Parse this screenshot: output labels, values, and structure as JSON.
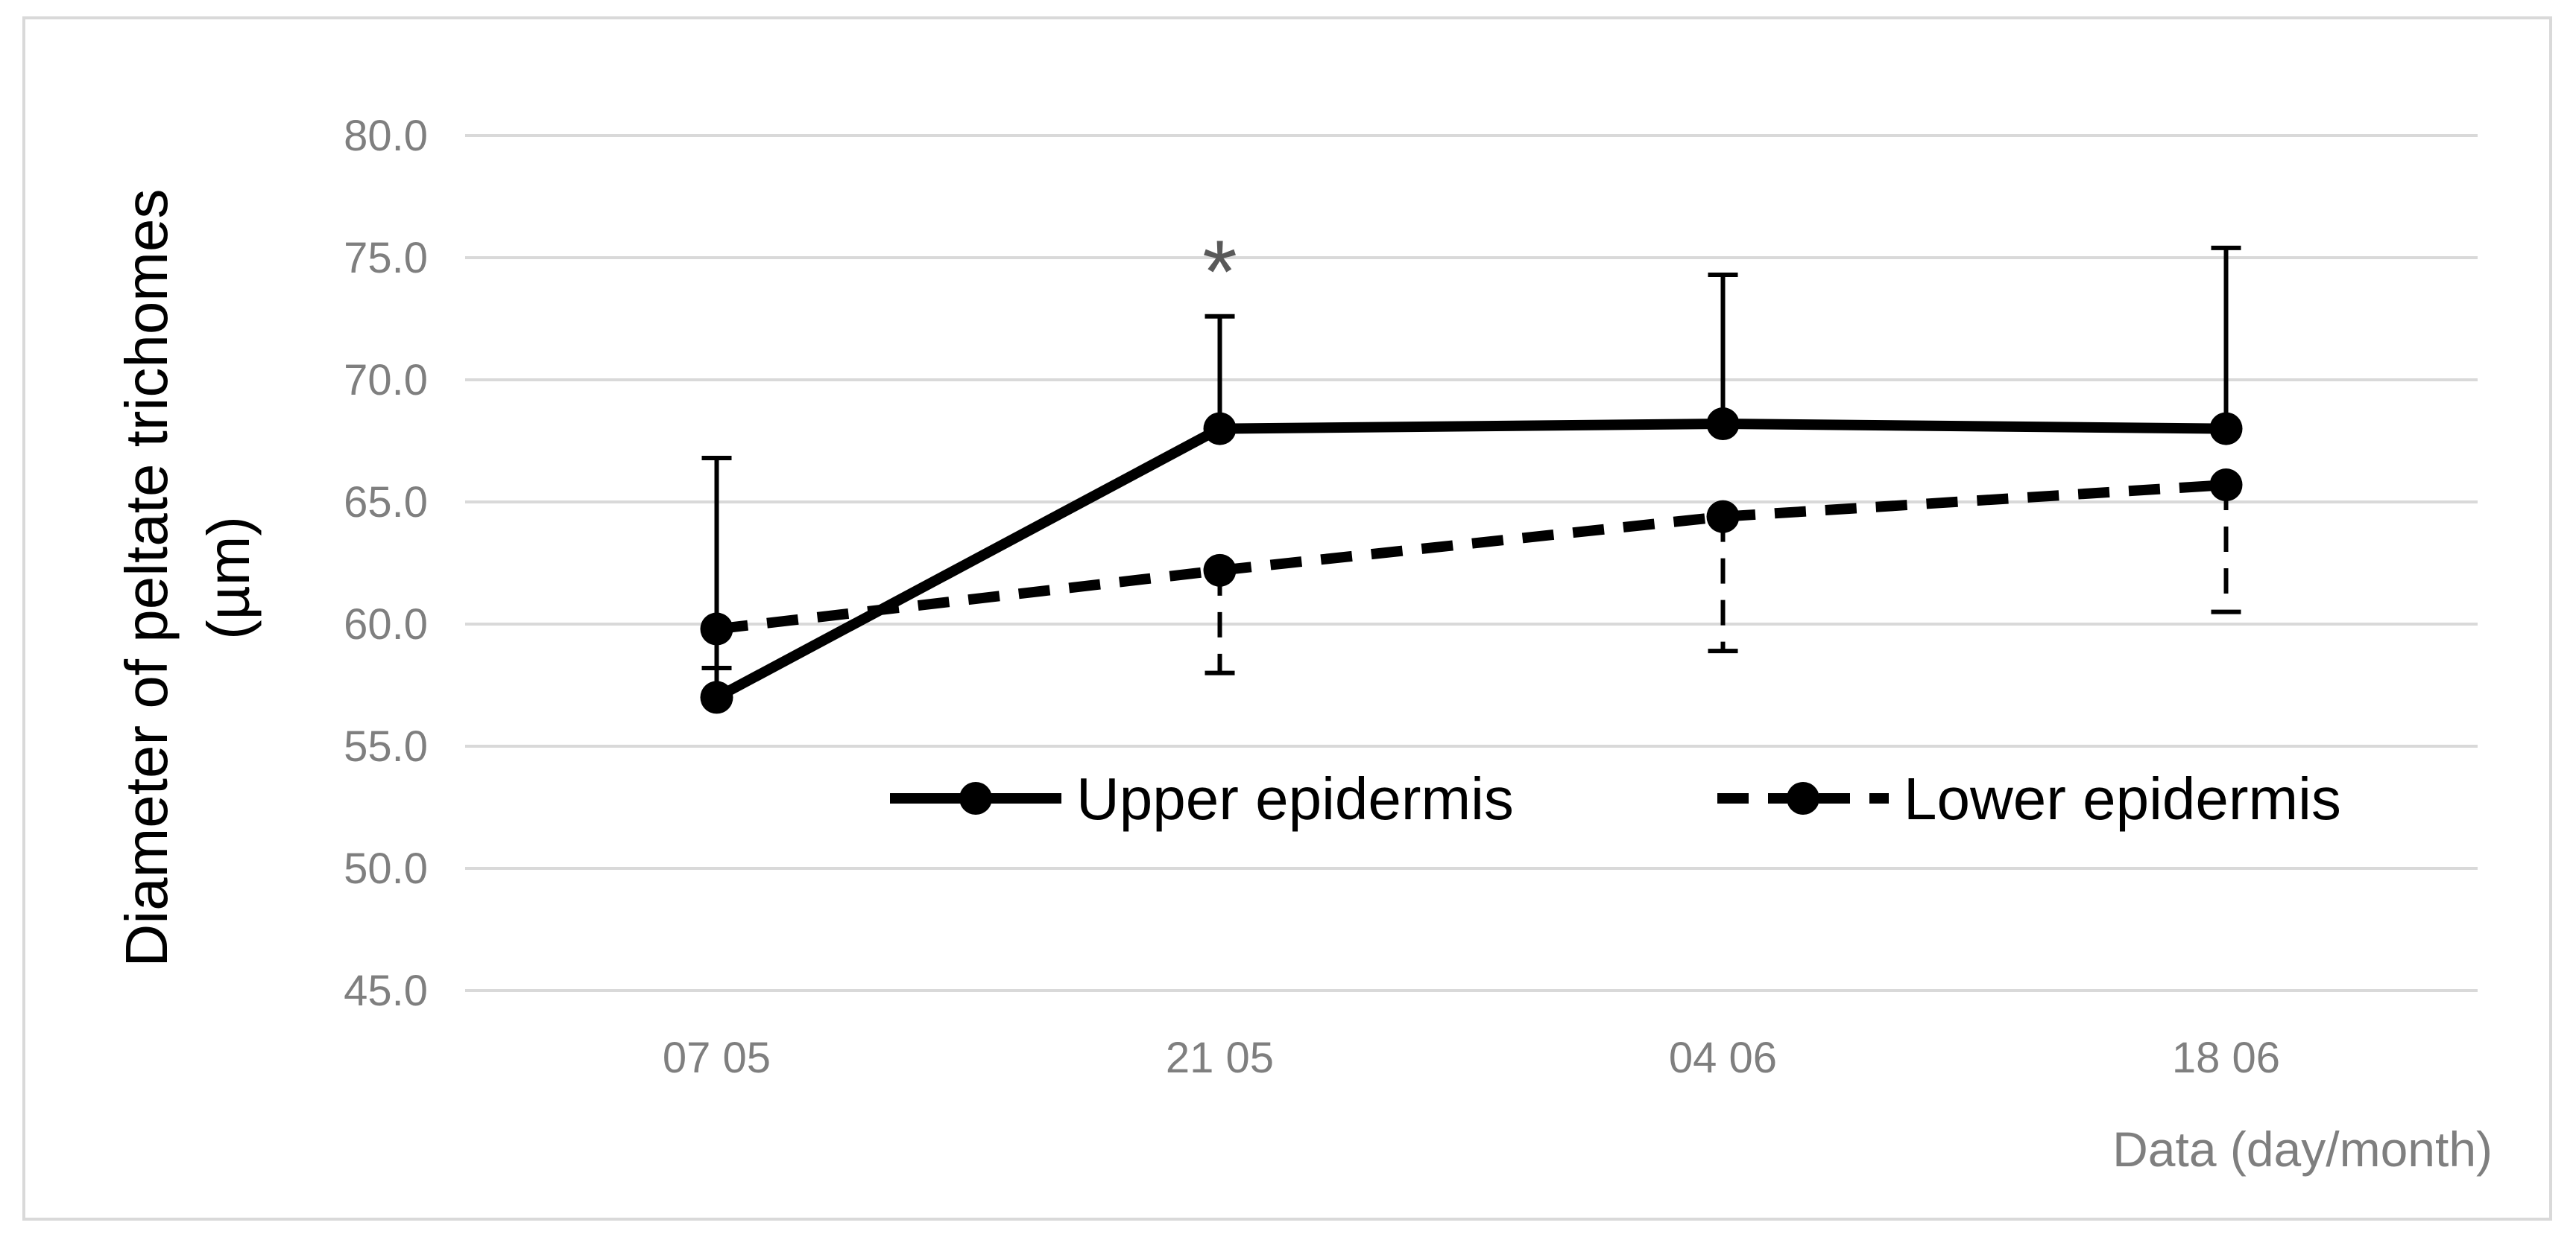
{
  "chart_data": {
    "type": "line",
    "title": "",
    "xlabel": "Data (day/month)",
    "ylabel_line1": "Diameter of peltate  trichomes",
    "ylabel_line2": "(µm)",
    "categories": [
      "07 05",
      "21 05",
      "04 06",
      "18 06"
    ],
    "ylim": [
      45.0,
      80.0
    ],
    "yticks": [
      "80.0",
      "75.0",
      "70.0",
      "65.0",
      "60.0",
      "55.0",
      "50.0",
      "45.0"
    ],
    "grid": true,
    "legend_position": "inside-bottom-right",
    "series": [
      {
        "name": "Upper epidermis",
        "style": "solid",
        "color": "#000000",
        "values": [
          57.0,
          68.0,
          68.2,
          68.0
        ],
        "error_high": [
          66.8,
          72.6,
          74.3,
          75.4
        ],
        "error_low": [
          null,
          null,
          null,
          null
        ]
      },
      {
        "name": "Lower epidermis",
        "style": "dashed",
        "color": "#000000",
        "values": [
          59.8,
          62.2,
          64.4,
          65.7
        ],
        "error_high": [
          null,
          null,
          null,
          null
        ],
        "error_low": [
          58.2,
          58.0,
          58.9,
          60.5
        ]
      }
    ],
    "annotations": [
      {
        "text": "*",
        "category": "21 05",
        "y": 75.0
      }
    ]
  }
}
